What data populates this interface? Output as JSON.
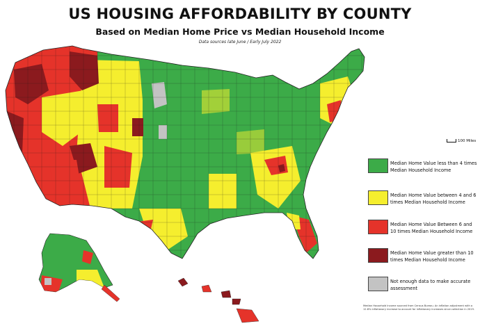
{
  "title": "US HOUSING AFFORDABILITY BY COUNTY",
  "subtitle": "Based on Median Home Price vs Median Household Income",
  "sources": "Data sources late June / Early July 2022",
  "scale_label": "100 Miles",
  "footnote": "Median Household Income sourced from Census Bureau. An inflation adjustment with a 12.8% inflationary increase to account for inflationary increases since collection in 2019.",
  "colors": {
    "green": "#3cab48",
    "yellow": "#f5ee2e",
    "red": "#e5332a",
    "darkred": "#8b1a1e",
    "gray": "#c3c3c3"
  },
  "legend": [
    {
      "label": "Median Home Value less than 4 times Median Household Income",
      "color": "#3cab48"
    },
    {
      "label": "Median Home Value between 4 and 6 times Median Household Income",
      "color": "#f5ee2e"
    },
    {
      "label": "Median Home Value Between 6 and 10 times Median Household Income",
      "color": "#e5332a"
    },
    {
      "label": "Median Home Value greater than 10 times Median Household Income",
      "color": "#8b1a1e"
    },
    {
      "label": "Not enough data to make accurate assessment",
      "color": "#c3c3c3"
    }
  ]
}
